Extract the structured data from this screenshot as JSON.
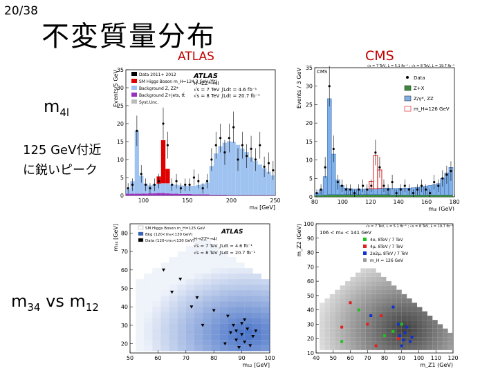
{
  "slide": {
    "page_number": "20/38",
    "title": "不変質量分布",
    "atlas_label": "ATLAS",
    "cms_label": "CMS",
    "text_m4l_main": "m",
    "text_m4l_sub": "4l",
    "text_peak_line1": "125 GeV付近",
    "text_peak_line2": "に鋭いピーク",
    "text_m34_a": "m",
    "text_m34_a_sub": "34",
    "text_m34_vs": " vs m",
    "text_m34_b_sub": "12"
  },
  "colors": {
    "accent_red": "#c00000",
    "signal_red": "#e00000",
    "background_blue": "#9fc3f0",
    "zjets_purple": "#9b30c0",
    "cms_green": "#3a8a3a",
    "cms_zz_blue": "#7fb0e8"
  },
  "chart_data": [
    {
      "type": "bar",
      "name": "atlas-m4l",
      "title": "ATLAS",
      "annotations": [
        "H→ZZ*→4l",
        "√s = 7 TeV ∫Ldt = 4.6 fb⁻¹",
        "√s = 8 TeV ∫Ldt = 20.7 fb⁻¹"
      ],
      "xlabel": "m₄ₗ [GeV]",
      "ylabel": "Events/5 GeV",
      "xlim": [
        80,
        250
      ],
      "ylim": [
        0,
        35
      ],
      "x_ticks": [
        100,
        150,
        200,
        250
      ],
      "y_ticks": [
        0,
        5,
        10,
        15,
        20,
        25,
        30,
        35
      ],
      "legend": [
        "Data 2011+ 2012",
        "SM Higgs Boson m_H=124.3 GeV (fit)",
        "Background Z, ZZ*",
        "Background Z+jets, tt̄",
        "Syst.Unc."
      ],
      "legend_placement": "top-left",
      "x": [
        82.5,
        87.5,
        92.5,
        97.5,
        102.5,
        107.5,
        112.5,
        117.5,
        122.5,
        127.5,
        132.5,
        137.5,
        142.5,
        147.5,
        152.5,
        157.5,
        162.5,
        167.5,
        172.5,
        177.5,
        182.5,
        187.5,
        192.5,
        197.5,
        202.5,
        207.5,
        212.5,
        217.5,
        222.5,
        227.5,
        232.5,
        237.5,
        242.5,
        247.5
      ],
      "zz_background": [
        1.2,
        3.5,
        17.5,
        5.0,
        2.8,
        2.2,
        2.5,
        2.6,
        2.7,
        2.8,
        2.6,
        2.5,
        2.4,
        2.3,
        2.3,
        2.4,
        2.6,
        2.9,
        3.3,
        8.0,
        11.5,
        13.5,
        14.5,
        15.0,
        14.8,
        14.0,
        13.0,
        12.0,
        10.5,
        9.5,
        8.5,
        7.5,
        6.5,
        5.5
      ],
      "zjets": [
        0.5,
        0.5,
        0.5,
        0.5,
        0.5,
        0.6,
        0.6,
        0.7,
        0.7,
        0.6,
        0.5,
        0.5,
        0.4,
        0.4,
        0.4,
        0.3,
        0.3,
        0.3,
        0.3,
        0.2,
        0.2,
        0.2,
        0.2,
        0.1,
        0.1,
        0.1,
        0.1,
        0.1,
        0.1,
        0.1,
        0.1,
        0.1,
        0.1,
        0.1
      ],
      "signal": [
        0,
        0,
        0,
        0,
        0,
        0,
        0,
        2.0,
        12.0,
        4.0,
        0,
        0,
        0,
        0,
        0,
        0,
        0,
        0,
        0,
        0,
        0,
        0,
        0,
        0,
        0,
        0,
        0,
        0,
        0,
        0,
        0,
        0,
        0,
        0
      ],
      "data": [
        2,
        3,
        18,
        6,
        3,
        2,
        3,
        4,
        20,
        14,
        3,
        4,
        2,
        3,
        3,
        5,
        4,
        2,
        4,
        10,
        14,
        16,
        12,
        16,
        19,
        10,
        14,
        11,
        13,
        10,
        14,
        8,
        9,
        7
      ]
    },
    {
      "type": "bar",
      "name": "cms-m4l",
      "title": "CMS",
      "annotations": [
        "√s = 7 TeV, L = 5.1 fb⁻¹ ; √s = 8 TeV, L = 19.7 fb⁻¹"
      ],
      "xlabel": "m₄ₗ (GeV)",
      "ylabel": "Events / 3 GeV",
      "xlim": [
        80,
        180
      ],
      "ylim": [
        0,
        35
      ],
      "x_ticks": [
        80,
        100,
        120,
        140,
        160,
        180
      ],
      "y_ticks": [
        0,
        5,
        10,
        15,
        20,
        25,
        30,
        35
      ],
      "legend": [
        "Data",
        "Z+X",
        "Z/γ*, ZZ",
        "m_H=126 GeV"
      ],
      "legend_placement": "top-right",
      "x": [
        81.5,
        84.5,
        87.5,
        90.5,
        93.5,
        96.5,
        99.5,
        102.5,
        105.5,
        108.5,
        111.5,
        114.5,
        117.5,
        120.5,
        123.5,
        126.5,
        129.5,
        132.5,
        135.5,
        138.5,
        141.5,
        144.5,
        147.5,
        150.5,
        153.5,
        156.5,
        159.5,
        162.5,
        165.5,
        168.5,
        171.5,
        174.5,
        177.5
      ],
      "zx": [
        0.3,
        0.4,
        0.5,
        0.6,
        0.6,
        0.6,
        0.6,
        0.6,
        0.6,
        0.6,
        0.6,
        0.6,
        0.6,
        0.6,
        0.6,
        0.6,
        0.6,
        0.6,
        0.5,
        0.5,
        0.5,
        0.5,
        0.5,
        0.5,
        0.5,
        0.5,
        0.5,
        0.5,
        0.5,
        0.5,
        0.5,
        0.5,
        0.5
      ],
      "zz": [
        0.8,
        1.5,
        5.0,
        26.0,
        11.0,
        4.0,
        2.5,
        1.8,
        1.6,
        1.5,
        1.5,
        1.5,
        1.6,
        1.6,
        1.6,
        1.7,
        1.8,
        1.8,
        1.8,
        1.8,
        1.9,
        1.9,
        1.9,
        2.0,
        2.1,
        2.2,
        2.4,
        2.6,
        2.8,
        3.1,
        4.5,
        6.0,
        7.5
      ],
      "signal": [
        0,
        0,
        0,
        0,
        0,
        0,
        0,
        0,
        0,
        0,
        0,
        0,
        0,
        2.0,
        9.0,
        5.0,
        0,
        0,
        0,
        0,
        0,
        0,
        0,
        0,
        0,
        0,
        0,
        0,
        0,
        0,
        0,
        0,
        0
      ],
      "data": [
        1,
        2,
        8,
        30,
        13,
        4,
        3,
        2,
        2,
        1,
        2,
        3,
        2,
        3,
        12,
        8,
        3,
        2,
        4,
        1,
        2,
        3,
        2,
        1,
        2,
        3,
        2,
        1,
        4,
        3,
        5,
        6,
        7
      ]
    },
    {
      "type": "heatmap",
      "name": "atlas-m34-vs-m12",
      "title": "ATLAS",
      "annotations": [
        "H→ZZ*→4l",
        "√s = 7 TeV ∫Ldt = 4.6 fb⁻¹",
        "√s = 8 TeV ∫Ldt = 20.7 fb⁻¹"
      ],
      "xlabel": "m₁₂ [GeV]",
      "ylabel": "m₃₄ [GeV]",
      "xlim": [
        50,
        100
      ],
      "ylim": [
        15,
        85
      ],
      "x_ticks": [
        50,
        60,
        70,
        80,
        90,
        100
      ],
      "y_ticks": [
        20,
        30,
        40,
        50,
        60,
        70,
        80
      ],
      "legend": [
        "SM Higgs Boson m_H=125 GeV",
        "Bkg (120<m₄ₗ<130 GeV)",
        "Data (120<m₄ₗ<130 GeV)"
      ],
      "legend_placement": "top",
      "points": [
        [
          88,
          22
        ],
        [
          90,
          25
        ],
        [
          92,
          28
        ],
        [
          87,
          30
        ],
        [
          91,
          33
        ],
        [
          93,
          19
        ],
        [
          89,
          18
        ],
        [
          86,
          26
        ],
        [
          94,
          24
        ],
        [
          90,
          31
        ],
        [
          84,
          20
        ],
        [
          76,
          30
        ],
        [
          80,
          38
        ],
        [
          74,
          45
        ],
        [
          85,
          35
        ],
        [
          68,
          55
        ],
        [
          65,
          48
        ],
        [
          72,
          40
        ],
        [
          62,
          60
        ],
        [
          95,
          27
        ],
        [
          91,
          21
        ],
        [
          88,
          27
        ]
      ]
    },
    {
      "type": "heatmap",
      "name": "cms-mz2-vs-mz1",
      "title": "CMS",
      "annotations": [
        "√s = 7 TeV, L = 5.1 fb⁻¹ ; √s = 8 TeV, L = 19.7 fb⁻¹",
        "106 < m₄ₗ < 141 GeV"
      ],
      "xlabel": "m_Z1 (GeV)",
      "ylabel": "m_Z2 (GeV)",
      "xlim": [
        40,
        120
      ],
      "ylim": [
        10,
        100
      ],
      "x_ticks": [
        40,
        50,
        60,
        70,
        80,
        90,
        100,
        110,
        120
      ],
      "y_ticks": [
        10,
        20,
        30,
        40,
        50,
        60,
        70,
        80,
        90,
        100
      ],
      "legend": [
        "4e, 8TeV / 7 TeV",
        "4μ, 8TeV / 7 TeV",
        "2e2μ, 8TeV / 7 TeV",
        "m_H = 126 GeV"
      ],
      "legend_placement": "top",
      "points_4e": [
        [
          55,
          18
        ],
        [
          85,
          25
        ],
        [
          90,
          30
        ],
        [
          80,
          22
        ],
        [
          65,
          40
        ]
      ],
      "points_4mu": [
        [
          60,
          45
        ],
        [
          70,
          30
        ],
        [
          78,
          36
        ],
        [
          88,
          20
        ],
        [
          55,
          28
        ],
        [
          75,
          15
        ]
      ],
      "points_2e2mu": [
        [
          92,
          24
        ],
        [
          89,
          22
        ],
        [
          95,
          18
        ],
        [
          90,
          15
        ],
        [
          93,
          28
        ],
        [
          85,
          42
        ],
        [
          72,
          36
        ],
        [
          88,
          30
        ],
        [
          96,
          21
        ],
        [
          91,
          19
        ]
      ]
    }
  ]
}
